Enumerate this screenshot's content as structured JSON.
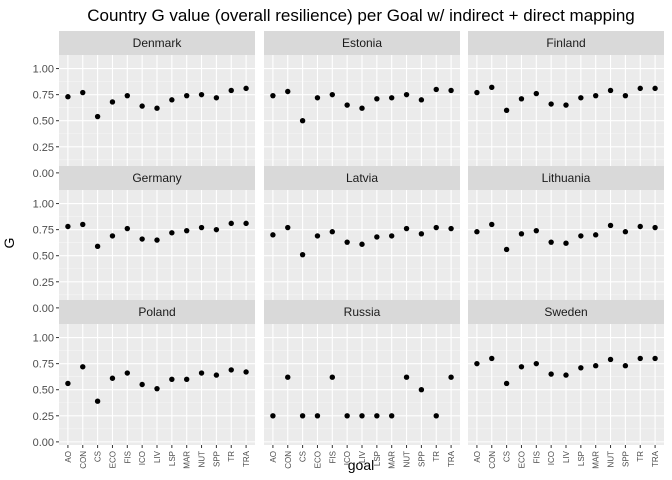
{
  "chart_data": {
    "type": "scatter",
    "title": "Country G value (overall resilience) per Goal w/ indirect + direct mapping",
    "xlabel": "goal",
    "ylabel": "G",
    "categories": [
      "AO",
      "CON",
      "CS",
      "ECO",
      "FIS",
      "ICO",
      "LIV",
      "LSP",
      "MAR",
      "NUT",
      "SPP",
      "TR",
      "TRA"
    ],
    "y_ticks": [
      "0.00",
      "0.25",
      "0.50",
      "0.75",
      "1.00"
    ],
    "ylim": [
      -0.03,
      1.13
    ],
    "grid": true,
    "layout": "facet grid 3x3",
    "colors": {
      "panel_bg": "#ebebeb",
      "strip_bg": "#d9d9d9",
      "grid_major": "#ffffff",
      "point": "#000000"
    },
    "series": [
      {
        "name": "Denmark",
        "values": [
          0.73,
          0.77,
          0.54,
          0.68,
          0.74,
          0.64,
          0.62,
          0.7,
          0.74,
          0.75,
          0.72,
          0.79,
          0.81
        ]
      },
      {
        "name": "Estonia",
        "values": [
          0.74,
          0.78,
          0.5,
          0.72,
          0.75,
          0.65,
          0.62,
          0.71,
          0.72,
          0.75,
          0.7,
          0.8,
          0.79
        ]
      },
      {
        "name": "Finland",
        "values": [
          0.77,
          0.82,
          0.6,
          0.71,
          0.76,
          0.66,
          0.65,
          0.72,
          0.74,
          0.79,
          0.74,
          0.81,
          0.81
        ]
      },
      {
        "name": "Germany",
        "values": [
          0.78,
          0.8,
          0.59,
          0.69,
          0.76,
          0.66,
          0.65,
          0.72,
          0.74,
          0.77,
          0.75,
          0.81,
          0.81
        ]
      },
      {
        "name": "Latvia",
        "values": [
          0.7,
          0.77,
          0.51,
          0.69,
          0.73,
          0.63,
          0.61,
          0.68,
          0.69,
          0.76,
          0.71,
          0.77,
          0.76
        ]
      },
      {
        "name": "Lithuania",
        "values": [
          0.73,
          0.8,
          0.56,
          0.71,
          0.74,
          0.63,
          0.62,
          0.69,
          0.7,
          0.79,
          0.73,
          0.78,
          0.77
        ]
      },
      {
        "name": "Poland",
        "values": [
          0.56,
          0.72,
          0.39,
          0.61,
          0.66,
          0.55,
          0.51,
          0.6,
          0.6,
          0.66,
          0.64,
          0.69,
          0.67
        ]
      },
      {
        "name": "Russia",
        "values": [
          0.25,
          0.62,
          0.25,
          0.25,
          0.62,
          0.25,
          0.25,
          0.25,
          0.25,
          0.62,
          0.5,
          0.25,
          0.62
        ]
      },
      {
        "name": "Sweden",
        "values": [
          0.75,
          0.8,
          0.56,
          0.72,
          0.75,
          0.65,
          0.64,
          0.71,
          0.73,
          0.79,
          0.73,
          0.8,
          0.8
        ]
      }
    ]
  }
}
